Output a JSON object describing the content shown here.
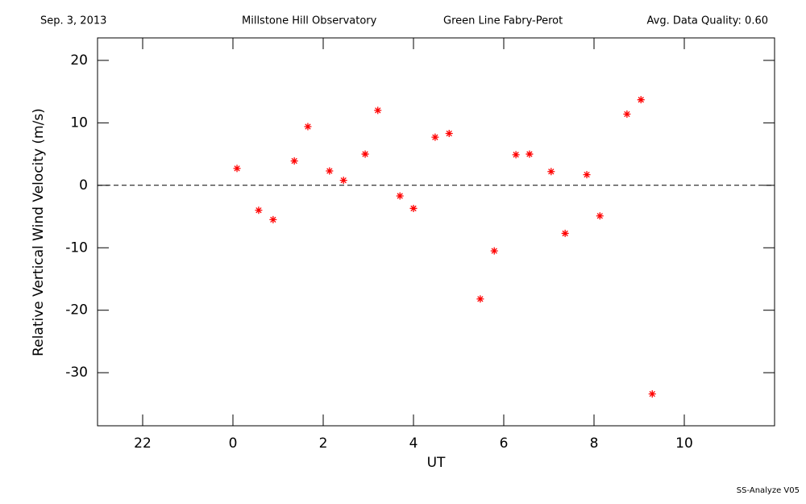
{
  "chart_data": {
    "type": "scatter",
    "header": [
      "Sep. 3, 2013",
      "Millstone Hill Observatory",
      "Green Line Fabry-Perot",
      "Avg. Data Quality: 0.60"
    ],
    "footer": "SS-Analyze V05",
    "x_label": "UT",
    "y_label": "Relative Vertical Wind Velocity (m/s)",
    "color": "#ff0000",
    "reference_line": 0,
    "xlim": [
      -3,
      12
    ],
    "xticks": [
      {
        "value": -2,
        "label": "22"
      },
      0,
      2,
      4,
      6,
      8,
      10
    ],
    "ylim": [
      -38.5,
      23.6
    ],
    "yticks": [
      -30,
      -20,
      -10,
      0,
      10,
      20
    ],
    "x": [
      0.09,
      0.57,
      0.89,
      1.36,
      1.66,
      2.14,
      2.45,
      2.93,
      3.21,
      3.7,
      4.0,
      4.48,
      4.79,
      5.48,
      5.79,
      6.27,
      6.57,
      7.05,
      7.36,
      7.84,
      8.13,
      8.73,
      9.04,
      9.29
    ],
    "values": [
      2.7,
      -4.0,
      -5.5,
      3.9,
      9.4,
      2.3,
      0.8,
      5.0,
      12.0,
      -1.7,
      -3.7,
      7.7,
      8.3,
      -18.2,
      -10.5,
      4.9,
      5.0,
      2.2,
      -7.7,
      1.7,
      -4.9,
      11.4,
      13.7,
      -33.4
    ]
  }
}
